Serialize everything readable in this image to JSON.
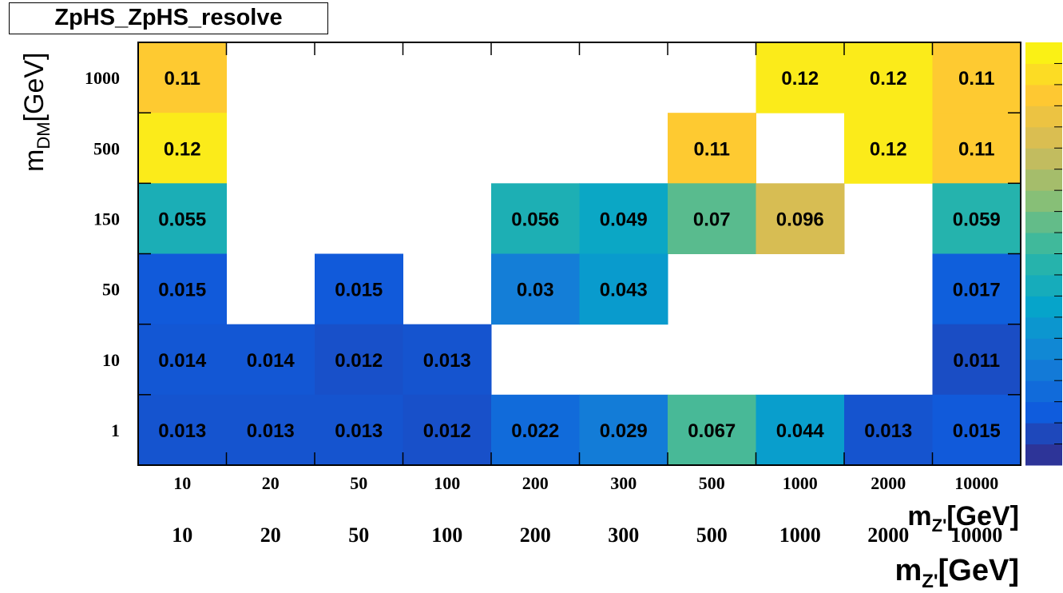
{
  "chart_data": {
    "type": "heatmap",
    "title": "ZpHS_ZpHS_resolve",
    "x_categories": [
      "10",
      "20",
      "50",
      "100",
      "200",
      "300",
      "500",
      "1000",
      "2000",
      "10000"
    ],
    "y_categories": [
      "1",
      "10",
      "50",
      "150",
      "500",
      "1000"
    ],
    "xlabel_main": "m",
    "xlabel_sub": "Z'",
    "xlabel_unit": "[GeV]",
    "ylabel_main": "m",
    "ylabel_sub": "DM",
    "ylabel_unit": "[GeV]",
    "z_range": [
      0.0,
      0.125
    ],
    "colorbar": true,
    "cells": [
      {
        "x": "10",
        "y": "1000",
        "value": 0.11,
        "label": "0.11"
      },
      {
        "x": "1000",
        "y": "1000",
        "value": 0.12,
        "label": "0.12"
      },
      {
        "x": "2000",
        "y": "1000",
        "value": 0.12,
        "label": "0.12"
      },
      {
        "x": "10000",
        "y": "1000",
        "value": 0.11,
        "label": "0.11"
      },
      {
        "x": "10",
        "y": "500",
        "value": 0.12,
        "label": "0.12"
      },
      {
        "x": "500",
        "y": "500",
        "value": 0.11,
        "label": "0.11"
      },
      {
        "x": "2000",
        "y": "500",
        "value": 0.12,
        "label": "0.12"
      },
      {
        "x": "10000",
        "y": "500",
        "value": 0.11,
        "label": "0.11"
      },
      {
        "x": "10",
        "y": "150",
        "value": 0.055,
        "label": "0.055"
      },
      {
        "x": "200",
        "y": "150",
        "value": 0.056,
        "label": "0.056"
      },
      {
        "x": "300",
        "y": "150",
        "value": 0.049,
        "label": "0.049"
      },
      {
        "x": "500",
        "y": "150",
        "value": 0.07,
        "label": "0.07"
      },
      {
        "x": "1000",
        "y": "150",
        "value": 0.096,
        "label": "0.096"
      },
      {
        "x": "10000",
        "y": "150",
        "value": 0.059,
        "label": "0.059"
      },
      {
        "x": "10",
        "y": "50",
        "value": 0.015,
        "label": "0.015"
      },
      {
        "x": "50",
        "y": "50",
        "value": 0.015,
        "label": "0.015"
      },
      {
        "x": "200",
        "y": "50",
        "value": 0.03,
        "label": "0.03"
      },
      {
        "x": "300",
        "y": "50",
        "value": 0.043,
        "label": "0.043"
      },
      {
        "x": "10000",
        "y": "50",
        "value": 0.017,
        "label": "0.017"
      },
      {
        "x": "10",
        "y": "10",
        "value": 0.014,
        "label": "0.014"
      },
      {
        "x": "20",
        "y": "10",
        "value": 0.014,
        "label": "0.014"
      },
      {
        "x": "50",
        "y": "10",
        "value": 0.012,
        "label": "0.012"
      },
      {
        "x": "100",
        "y": "10",
        "value": 0.013,
        "label": "0.013"
      },
      {
        "x": "10000",
        "y": "10",
        "value": 0.011,
        "label": "0.011"
      },
      {
        "x": "10",
        "y": "1",
        "value": 0.013,
        "label": "0.013"
      },
      {
        "x": "20",
        "y": "1",
        "value": 0.013,
        "label": "0.013"
      },
      {
        "x": "50",
        "y": "1",
        "value": 0.013,
        "label": "0.013"
      },
      {
        "x": "100",
        "y": "1",
        "value": 0.012,
        "label": "0.012"
      },
      {
        "x": "200",
        "y": "1",
        "value": 0.022,
        "label": "0.022"
      },
      {
        "x": "300",
        "y": "1",
        "value": 0.029,
        "label": "0.029"
      },
      {
        "x": "500",
        "y": "1",
        "value": 0.067,
        "label": "0.067"
      },
      {
        "x": "1000",
        "y": "1",
        "value": 0.044,
        "label": "0.044"
      },
      {
        "x": "2000",
        "y": "1",
        "value": 0.013,
        "label": "0.013"
      },
      {
        "x": "10000",
        "y": "1",
        "value": 0.015,
        "label": "0.015"
      }
    ],
    "palette": [
      "#352a87",
      "#0f5cdd",
      "#1481d6",
      "#06a4ca",
      "#2eb7a4",
      "#87bf77",
      "#d1bb59",
      "#fec832",
      "#f9fb0e"
    ]
  }
}
